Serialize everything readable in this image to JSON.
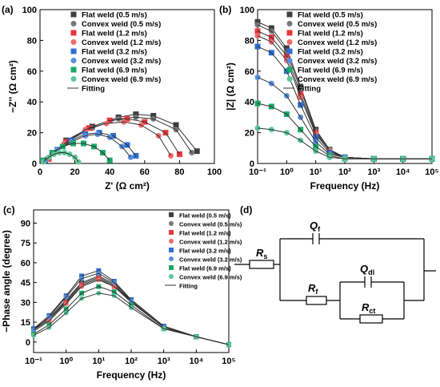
{
  "chart_data": [
    {
      "type": "scatter",
      "panel": "(a)",
      "xlabel": "Z' (Ω cm²)",
      "ylabel": "−Z'' (Ω cm²)",
      "fit_legend": "Fitting",
      "xlim": [
        0,
        100
      ],
      "ylim": [
        0,
        100
      ],
      "xticks": [
        0,
        20,
        40,
        60,
        80,
        100
      ],
      "yticks": [
        0,
        20,
        40,
        60,
        80,
        100
      ],
      "series": [
        {
          "name": "Flat weld (0.5 m/s)",
          "color": "#404040",
          "marker": "square",
          "x": [
            5,
            15,
            30,
            45,
            55,
            65,
            78,
            90
          ],
          "values": [
            3,
            15,
            24,
            30,
            32,
            31,
            25,
            8
          ]
        },
        {
          "name": "Convex weld (0.5 m/s)",
          "color": "#777777",
          "marker": "circle",
          "x": [
            5,
            15,
            30,
            45,
            55,
            65,
            78,
            87
          ],
          "values": [
            3,
            14,
            23,
            29,
            30,
            29,
            22,
            7
          ]
        },
        {
          "name": "Flat weld (1.2 m/s)",
          "color": "#e8383d",
          "marker": "square",
          "x": [
            5,
            15,
            28,
            40,
            50,
            60,
            72,
            80
          ],
          "values": [
            3,
            14,
            23,
            28,
            29,
            27,
            20,
            6
          ]
        },
        {
          "name": "Convex weld (1.2 m/s)",
          "color": "#f26b6b",
          "marker": "circle",
          "x": [
            4,
            14,
            26,
            38,
            48,
            58,
            68,
            75
          ],
          "values": [
            3,
            13,
            22,
            26,
            27,
            25,
            18,
            5
          ]
        },
        {
          "name": "Flat weld (3.2 m/s)",
          "color": "#2e6fd1",
          "marker": "square",
          "x": [
            3,
            10,
            18,
            26,
            34,
            42,
            50,
            55
          ],
          "values": [
            2,
            9,
            15,
            19,
            20,
            18,
            12,
            5
          ]
        },
        {
          "name": "Convex weld (3.2 m/s)",
          "color": "#5b8fe0",
          "marker": "circle",
          "x": [
            3,
            10,
            18,
            26,
            33,
            40,
            47,
            52
          ],
          "values": [
            2,
            9,
            14,
            18,
            19,
            17,
            11,
            4
          ]
        },
        {
          "name": "Flat weld (6.9 m/s)",
          "color": "#19a868",
          "marker": "square",
          "x": [
            2,
            7,
            13,
            19,
            25,
            31,
            36,
            40
          ],
          "values": [
            2,
            7,
            11,
            13,
            13,
            11,
            7,
            2
          ]
        },
        {
          "name": "Convex weld (6.9 m/s)",
          "color": "#5cc79a",
          "marker": "circle",
          "x": [
            2,
            5,
            8,
            11,
            14,
            17,
            20,
            22
          ],
          "values": [
            1,
            4,
            6,
            7,
            7,
            6,
            4,
            1
          ]
        }
      ]
    },
    {
      "type": "line",
      "panel": "(b)",
      "xlabel": "Frequency (Hz)",
      "ylabel": "|Z| (Ω cm²)",
      "fit_legend": "Fitting",
      "xscale": "log",
      "xlim": [
        0.1,
        100000
      ],
      "ylim": [
        0,
        100
      ],
      "xticks": [
        {
          "value": 0.1,
          "label": "10⁻¹"
        },
        {
          "value": 1,
          "label": "10⁰"
        },
        {
          "value": 10,
          "label": "10¹"
        },
        {
          "value": 100,
          "label": "10²"
        },
        {
          "value": 1000,
          "label": "10³"
        },
        {
          "value": 10000,
          "label": "10⁴"
        },
        {
          "value": 100000,
          "label": "10⁵"
        }
      ],
      "yticks": [
        0,
        20,
        40,
        60,
        80,
        100
      ],
      "x": [
        0.1,
        0.3,
        1,
        3,
        10,
        30,
        100,
        1000,
        10000,
        100000
      ],
      "series": [
        {
          "name": "Flat weld (0.5 m/s)",
          "color": "#404040",
          "marker": "square",
          "values": [
            92,
            88,
            75,
            50,
            22,
            9,
            4,
            3,
            3,
            3
          ]
        },
        {
          "name": "Convex weld (0.5 m/s)",
          "color": "#777777",
          "marker": "circle",
          "values": [
            90,
            86,
            73,
            48,
            21,
            9,
            4,
            3,
            3,
            3
          ]
        },
        {
          "name": "Flat weld (1.2 m/s)",
          "color": "#e8383d",
          "marker": "square",
          "values": [
            86,
            82,
            70,
            45,
            20,
            8,
            4,
            3,
            3,
            3
          ]
        },
        {
          "name": "Convex weld (1.2 m/s)",
          "color": "#f26b6b",
          "marker": "circle",
          "values": [
            83,
            79,
            67,
            43,
            19,
            8,
            4,
            3,
            3,
            3
          ]
        },
        {
          "name": "Flat weld (3.2 m/s)",
          "color": "#2e6fd1",
          "marker": "square",
          "values": [
            76,
            72,
            60,
            38,
            17,
            7,
            4,
            3,
            3,
            3
          ]
        },
        {
          "name": "Convex weld (3.2 m/s)",
          "color": "#5b8fe0",
          "marker": "circle",
          "values": [
            56,
            52,
            44,
            30,
            14,
            6,
            4,
            3,
            3,
            3
          ]
        },
        {
          "name": "Flat weld (6.9 m/s)",
          "color": "#19a868",
          "marker": "square",
          "values": [
            39,
            37,
            32,
            22,
            11,
            5,
            3,
            3,
            3,
            3
          ]
        },
        {
          "name": "Convex weld (6.9 m/s)",
          "color": "#5cc79a",
          "marker": "circle",
          "values": [
            23,
            22,
            20,
            15,
            8,
            4,
            3,
            3,
            3,
            3
          ]
        }
      ]
    },
    {
      "type": "line",
      "panel": "(c)",
      "xlabel": "Frequency (Hz)",
      "ylabel": "−Phase  angle (degree)",
      "fit_legend": "Fitting",
      "xscale": "log",
      "xlim": [
        0.1,
        100000
      ],
      "ylim": [
        -8,
        100
      ],
      "xticks": [
        {
          "value": 0.1,
          "label": "10⁻¹"
        },
        {
          "value": 1,
          "label": "10⁰"
        },
        {
          "value": 10,
          "label": "10¹"
        },
        {
          "value": 100,
          "label": "10²"
        },
        {
          "value": 1000,
          "label": "10³"
        },
        {
          "value": 10000,
          "label": "10⁴"
        },
        {
          "value": 100000,
          "label": "10⁵"
        }
      ],
      "yticks": [
        0,
        15,
        30,
        45,
        60,
        75,
        90
      ],
      "x": [
        0.1,
        0.3,
        1,
        3,
        10,
        30,
        100,
        1000,
        10000,
        100000
      ],
      "series": [
        {
          "name": "Flat weld (0.5 m/s)",
          "color": "#404040",
          "marker": "square",
          "values": [
            10,
            18,
            32,
            45,
            50,
            44,
            32,
            12,
            4,
            -2
          ]
        },
        {
          "name": "Convex weld (0.5 m/s)",
          "color": "#777777",
          "marker": "circle",
          "values": [
            9,
            17,
            31,
            44,
            49,
            43,
            31,
            11,
            4,
            -2
          ]
        },
        {
          "name": "Flat weld (1.2 m/s)",
          "color": "#e8383d",
          "marker": "square",
          "values": [
            9,
            17,
            30,
            43,
            48,
            42,
            31,
            11,
            4,
            -2
          ]
        },
        {
          "name": "Convex weld (1.2 m/s)",
          "color": "#f26b6b",
          "marker": "circle",
          "values": [
            8,
            16,
            29,
            42,
            47,
            42,
            30,
            11,
            4,
            -2
          ]
        },
        {
          "name": "Flat weld (3.2 m/s)",
          "color": "#2e6fd1",
          "marker": "square",
          "values": [
            10,
            20,
            35,
            50,
            54,
            46,
            32,
            12,
            4,
            -2
          ]
        },
        {
          "name": "Convex weld (3.2 m/s)",
          "color": "#5b8fe0",
          "marker": "circle",
          "values": [
            9,
            19,
            34,
            48,
            52,
            45,
            31,
            11,
            4,
            -2
          ]
        },
        {
          "name": "Flat weld (6.9 m/s)",
          "color": "#19a868",
          "marker": "square",
          "values": [
            6,
            13,
            25,
            37,
            42,
            38,
            28,
            10,
            4,
            -2
          ]
        },
        {
          "name": "Convex weld (6.9 m/s)",
          "color": "#5cc79a",
          "marker": "circle",
          "values": [
            5,
            11,
            22,
            33,
            37,
            35,
            26,
            10,
            4,
            -2
          ]
        }
      ]
    }
  ],
  "circuit": {
    "panel": "(d)",
    "components": [
      {
        "symbol": "R",
        "sub": "s"
      },
      {
        "symbol": "Q",
        "sub": "f"
      },
      {
        "symbol": "R",
        "sub": "f"
      },
      {
        "symbol": "Q",
        "sub": "dl"
      },
      {
        "symbol": "R",
        "sub": "ct"
      }
    ]
  }
}
